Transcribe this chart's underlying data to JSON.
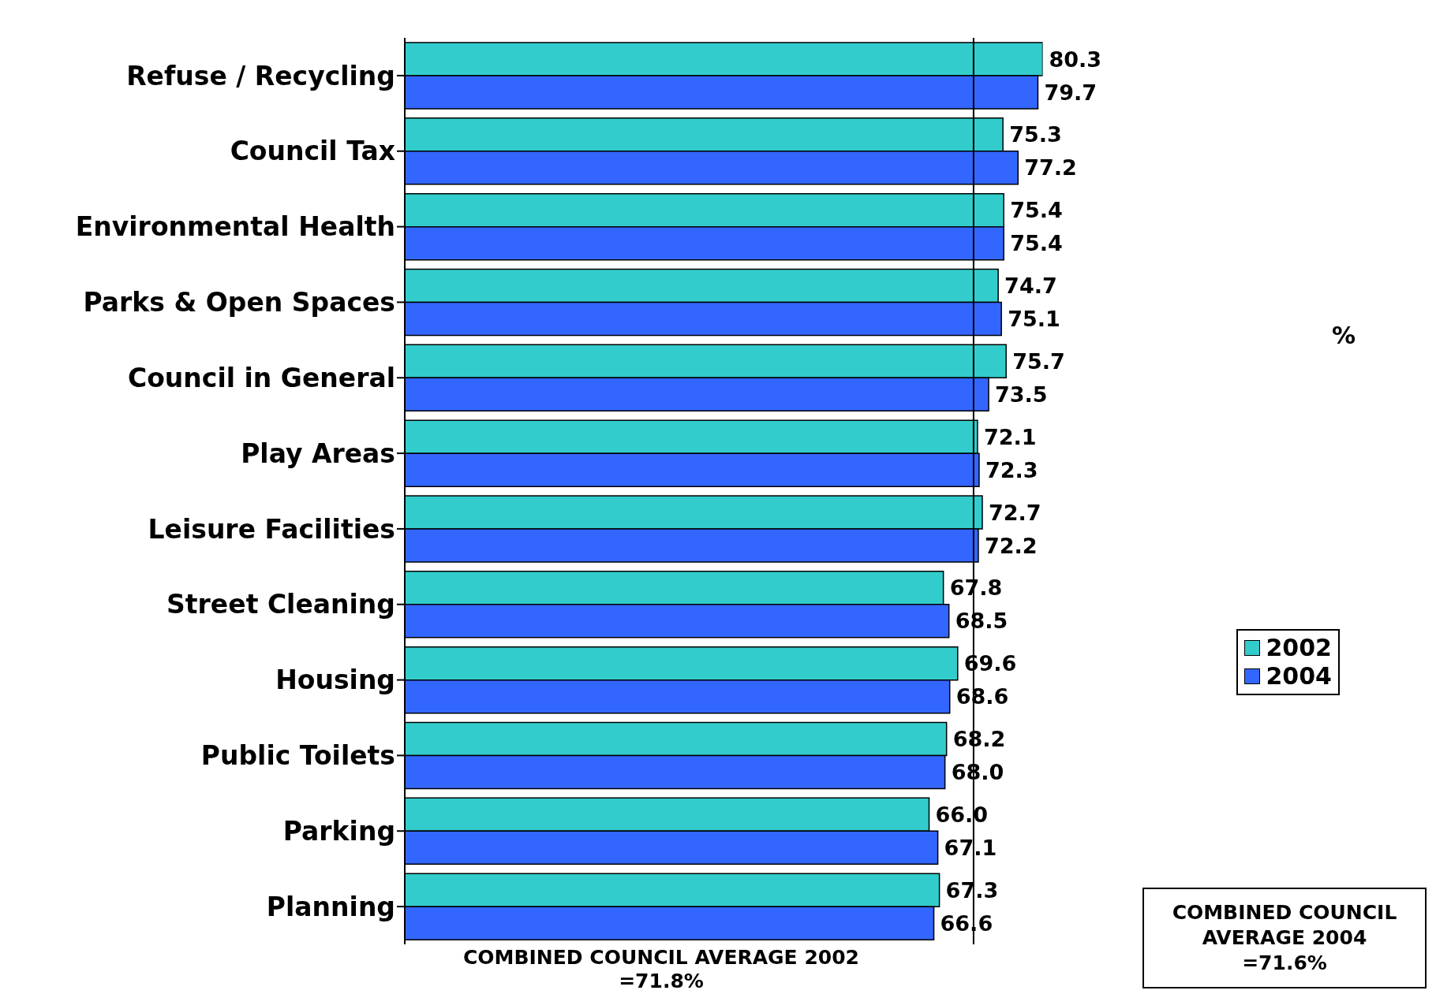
{
  "chart_data": {
    "type": "bar",
    "orientation": "horizontal",
    "categories": [
      "Refuse / Recycling",
      "Council Tax",
      "Environmental Health",
      "Parks & Open Spaces",
      "Council in General",
      "Play Areas",
      "Leisure Facilities",
      "Street Cleaning",
      "Housing",
      "Public Toilets",
      "Parking",
      "Planning"
    ],
    "series": [
      {
        "name": "2002",
        "color": "#33cccc",
        "values": [
          80.3,
          75.3,
          75.4,
          74.7,
          75.7,
          72.1,
          72.7,
          67.8,
          69.6,
          68.2,
          66.0,
          67.3
        ],
        "value_labels": [
          "80.3",
          "75.3",
          "75.4",
          "74.7",
          "75.7",
          "72.1",
          "72.7",
          "67.8",
          "69.6",
          "68.2",
          "66.0",
          "67.3"
        ]
      },
      {
        "name": "2004",
        "color": "#3366ff",
        "values": [
          79.7,
          77.2,
          75.4,
          75.1,
          73.5,
          72.3,
          72.2,
          68.5,
          68.6,
          68.0,
          67.1,
          66.6
        ],
        "value_labels": [
          "79.7",
          "77.2",
          "75.4",
          "75.1",
          "73.5",
          "72.3",
          "72.2",
          "68.5",
          "68.6",
          "68.0",
          "67.1",
          "66.6"
        ]
      }
    ],
    "legend": "right",
    "tick_labels": "y",
    "ref_lines": [
      {
        "axis": "x",
        "value": 71.6
      }
    ],
    "annotations": [
      "%",
      "COMBINED COUNCIL AVERAGE 2002 =71.8%",
      "COMBINED COUNCIL AVERAGE 2004 =71.6%"
    ]
  }
}
